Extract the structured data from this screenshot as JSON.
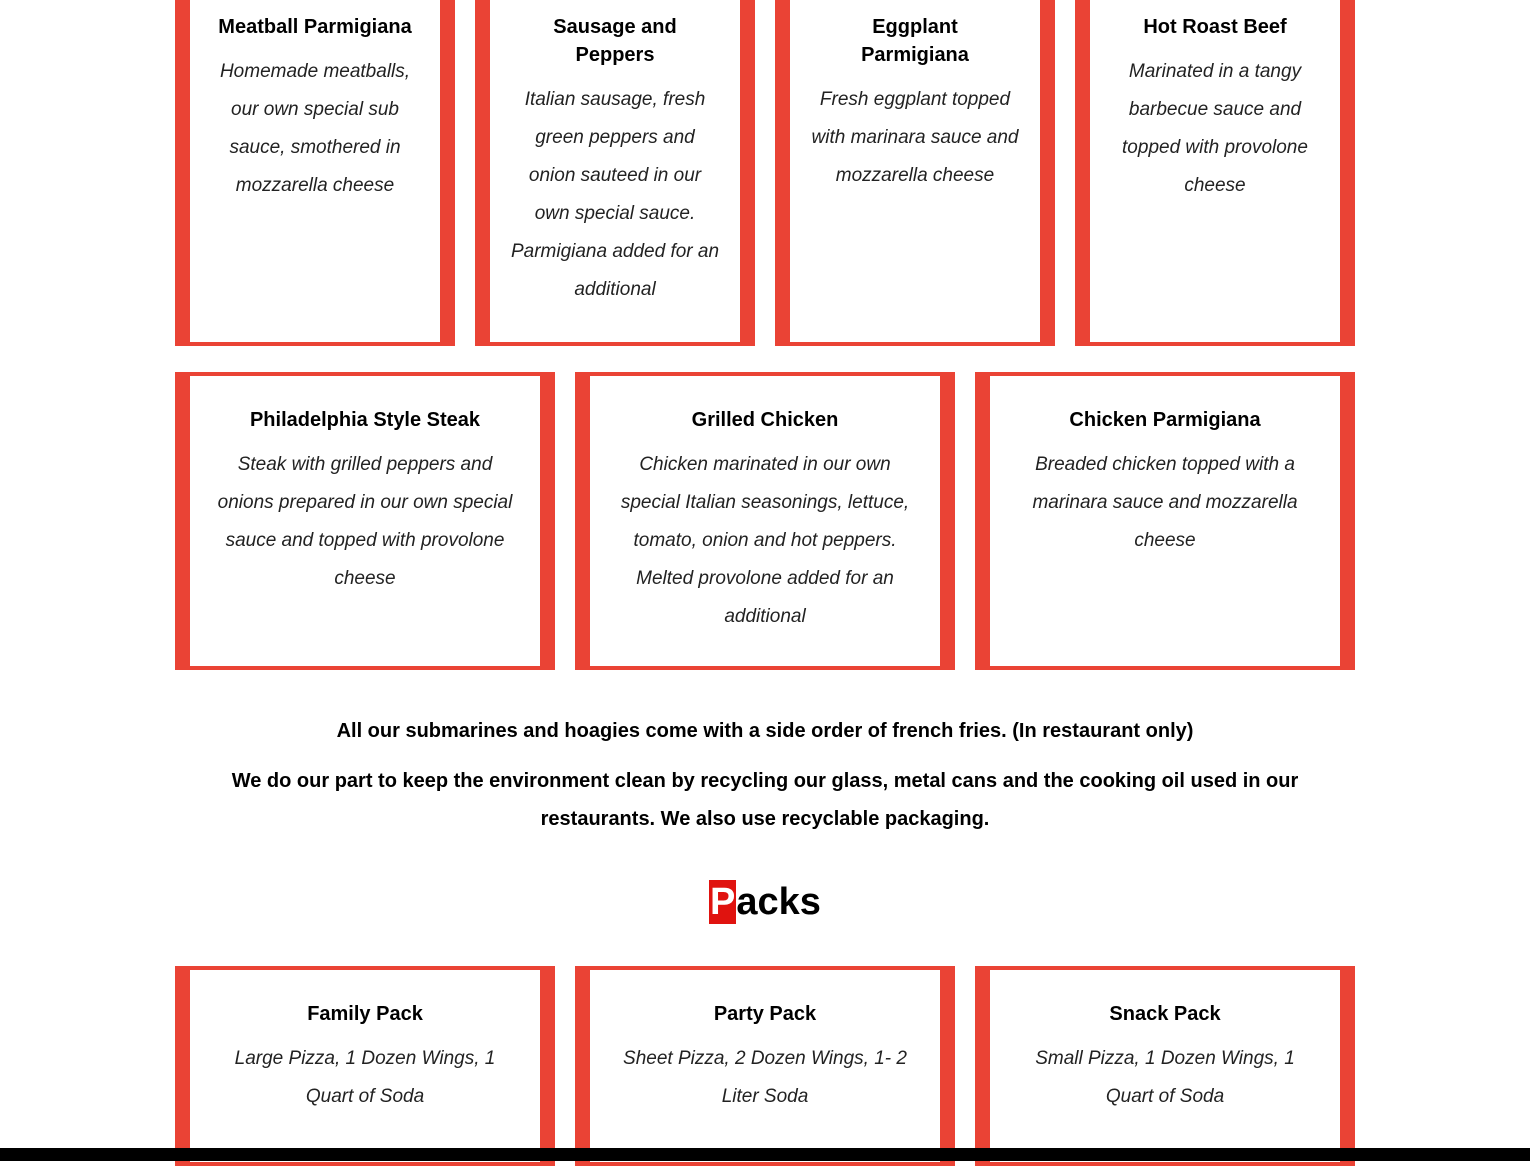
{
  "colors": {
    "accent": "#ea4335",
    "heading_highlight": "#e0130f"
  },
  "subs_row1": [
    {
      "title": "Meatball Parmigiana",
      "desc": "Homemade meatballs, our own special sub sauce, smothered in mozzarella cheese"
    },
    {
      "title": "Sausage and Peppers",
      "desc": "Italian sausage, fresh green peppers and onion sauteed in our own special sauce. Parmigiana added for an additional"
    },
    {
      "title": "Eggplant Parmigiana",
      "desc": "Fresh eggplant topped with marinara sauce and mozzarella cheese"
    },
    {
      "title": "Hot Roast Beef",
      "desc": "Marinated in a tangy barbecue sauce and topped with provolone cheese"
    }
  ],
  "subs_row2": [
    {
      "title": "Philadelphia Style Steak",
      "desc": "Steak with grilled peppers and onions prepared in our own special sauce and topped with provolone cheese"
    },
    {
      "title": "Grilled Chicken",
      "desc": "Chicken marinated in our own special Italian seasonings, lettuce, tomato, onion and hot peppers. Melted provolone added for an additional"
    },
    {
      "title": "Chicken Parmigiana",
      "desc": "Breaded chicken topped with a marinara sauce and mozzarella cheese"
    }
  ],
  "notes": {
    "fries": "All our submarines and hoagies come with a side order of french fries. (In restaurant only)",
    "environment": "We do our part to keep the environment clean by recycling our glass, metal cans and the cooking oil used in our restaurants. We also use recyclable packaging."
  },
  "packs_heading": {
    "first_letter": "P",
    "rest": "acks"
  },
  "packs": [
    {
      "title": "Family Pack",
      "desc": "Large Pizza, 1 Dozen Wings, 1 Quart of Soda"
    },
    {
      "title": "Party Pack",
      "desc": "Sheet Pizza, 2 Dozen Wings, 1- 2 Liter Soda"
    },
    {
      "title": "Snack Pack",
      "desc": "Small Pizza, 1 Dozen Wings, 1 Quart of Soda"
    }
  ]
}
